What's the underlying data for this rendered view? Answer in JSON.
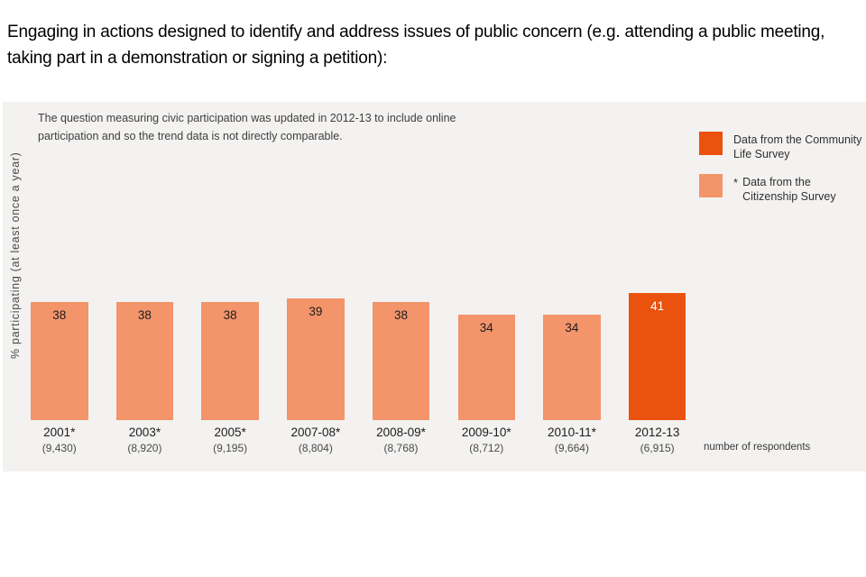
{
  "page": {
    "title": "Engaging in actions designed to identify and address issues of public concern (e.g. attending a public meeting, taking part in a demonstration or signing a petition):"
  },
  "chart_data": {
    "type": "bar",
    "note": "The question measuring civic participation was updated in 2012-13 to include online participation and so the trend data is not directly comparable.",
    "ylabel": "% participating (at least once a year)",
    "respondents_caption": "number of respondents",
    "categories": [
      "2001*",
      "2003*",
      "2005*",
      "2007-08*",
      "2008-09*",
      "2009-10*",
      "2010-11*",
      "2012-13"
    ],
    "values": [
      38,
      38,
      38,
      39,
      38,
      34,
      34,
      41
    ],
    "respondents": [
      "(9,430)",
      "(8,920)",
      "(9,195)",
      "(8,804)",
      "(8,768)",
      "(8,712)",
      "(9,664)",
      "(6,915)"
    ],
    "point_surveys": [
      "citizenship",
      "citizenship",
      "citizenship",
      "citizenship",
      "citizenship",
      "citizenship",
      "citizenship",
      "community"
    ],
    "legend": [
      {
        "marker": "",
        "survey": "community",
        "label": "Data from the Community Life Survey"
      },
      {
        "marker": "*",
        "survey": "citizenship",
        "label": "Data from the Citizenship Survey"
      }
    ],
    "colors": {
      "community": "#eb520e",
      "citizenship": "#f3946a",
      "panel_background": "#f3f2f1"
    },
    "ylim": [
      0,
      50
    ],
    "grid": false,
    "legend_position": "top-right"
  }
}
